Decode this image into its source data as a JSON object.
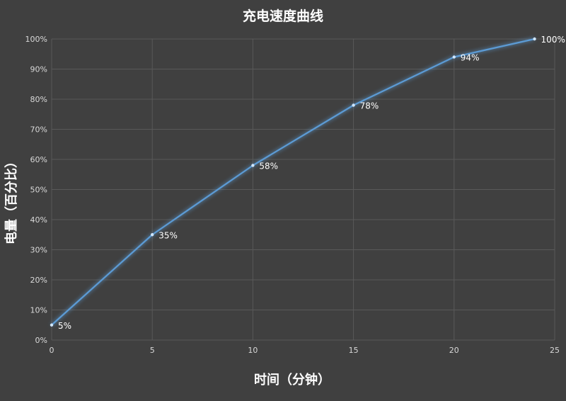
{
  "chart_data": {
    "type": "line",
    "title": "充电速度曲线",
    "xlabel": "时间（分钟）",
    "ylabel": "电量（百分比）",
    "x": [
      0,
      5,
      10,
      15,
      20,
      24
    ],
    "series": [
      {
        "values": [
          5,
          35,
          58,
          78,
          94,
          100
        ]
      }
    ],
    "data_labels": [
      "5%",
      "35%",
      "58%",
      "78%",
      "94%",
      "100%"
    ],
    "xlim": [
      0,
      25
    ],
    "ylim": [
      0,
      100
    ],
    "x_ticks": [
      "0",
      "5",
      "10",
      "15",
      "20",
      "25"
    ],
    "y_ticks": [
      "0%",
      "10%",
      "20%",
      "30%",
      "40%",
      "50%",
      "60%",
      "70%",
      "80%",
      "90%",
      "100%"
    ],
    "grid": true,
    "colors": {
      "background": "#404040",
      "line": "#5b9bd5",
      "grid": "#595959",
      "text": "#d9d9d9",
      "title": "#ffffff"
    }
  }
}
